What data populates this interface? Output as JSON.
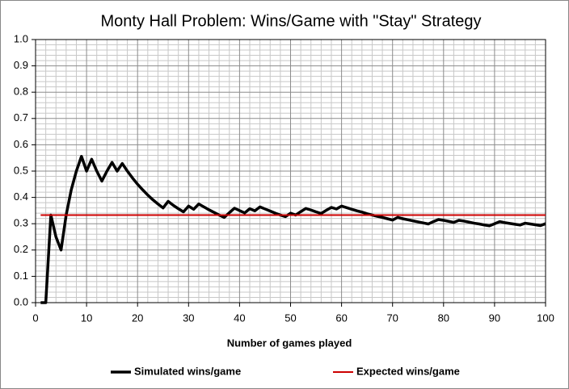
{
  "chart_data": {
    "type": "line",
    "title": "Monty Hall Problem: Wins/Game with \"Stay\" Strategy",
    "x_label": "Number of games played",
    "x": [
      1,
      2,
      3,
      4,
      5,
      6,
      7,
      8,
      9,
      10,
      11,
      12,
      13,
      14,
      15,
      16,
      17,
      18,
      19,
      20,
      21,
      22,
      23,
      24,
      25,
      26,
      27,
      28,
      29,
      30,
      31,
      32,
      33,
      34,
      35,
      36,
      37,
      38,
      39,
      40,
      41,
      42,
      43,
      44,
      45,
      46,
      47,
      48,
      49,
      50,
      51,
      52,
      53,
      54,
      55,
      56,
      57,
      58,
      59,
      60,
      61,
      62,
      63,
      64,
      65,
      66,
      67,
      68,
      69,
      70,
      71,
      72,
      73,
      74,
      75,
      76,
      77,
      78,
      79,
      80,
      81,
      82,
      83,
      84,
      85,
      86,
      87,
      88,
      89,
      90,
      91,
      92,
      93,
      94,
      95,
      96,
      97,
      98,
      99,
      100
    ],
    "series": [
      {
        "name": "Simulated wins/game",
        "color": "#000000",
        "values": [
          0,
          0,
          0.333,
          0.25,
          0.2,
          0.333,
          0.429,
          0.5,
          0.556,
          0.5,
          0.545,
          0.5,
          0.462,
          0.5,
          0.533,
          0.5,
          0.529,
          0.5,
          0.474,
          0.45,
          0.429,
          0.409,
          0.391,
          0.375,
          0.36,
          0.385,
          0.37,
          0.357,
          0.345,
          0.367,
          0.355,
          0.375,
          0.364,
          0.353,
          0.343,
          0.333,
          0.324,
          0.342,
          0.359,
          0.35,
          0.341,
          0.357,
          0.349,
          0.364,
          0.356,
          0.348,
          0.34,
          0.333,
          0.327,
          0.34,
          0.333,
          0.346,
          0.358,
          0.352,
          0.345,
          0.339,
          0.351,
          0.362,
          0.356,
          0.367,
          0.361,
          0.355,
          0.349,
          0.344,
          0.338,
          0.333,
          0.328,
          0.324,
          0.319,
          0.314,
          0.324,
          0.319,
          0.315,
          0.311,
          0.307,
          0.303,
          0.299,
          0.308,
          0.316,
          0.313,
          0.309,
          0.305,
          0.313,
          0.31,
          0.306,
          0.302,
          0.299,
          0.295,
          0.292,
          0.3,
          0.308,
          0.304,
          0.301,
          0.298,
          0.295,
          0.302,
          0.299,
          0.296,
          0.293,
          0.3
        ]
      },
      {
        "name": "Expected wins/game",
        "color": "#cc0000",
        "x": [
          1,
          100
        ],
        "values": [
          0.333,
          0.333
        ]
      }
    ],
    "xlim": [
      0,
      100
    ],
    "xticks": [
      0,
      10,
      20,
      30,
      40,
      50,
      60,
      70,
      80,
      90,
      100
    ],
    "ylim": [
      0,
      1
    ],
    "yticks": [
      {
        "value": 0,
        "label": "0.0"
      },
      0.1,
      0.2,
      0.3,
      0.4,
      0.5,
      0.6,
      0.7,
      0.8,
      0.9,
      {
        "value": 1,
        "label": "1.0"
      }
    ],
    "grid": true,
    "legend": "bottom"
  }
}
